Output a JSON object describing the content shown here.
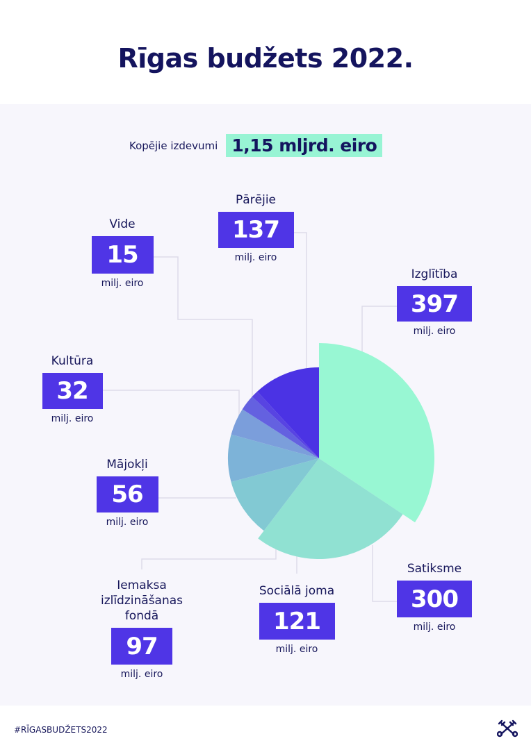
{
  "title": "Rīgas budžets 2022.",
  "total": {
    "label": "Kopējie izdevumi",
    "value": "1,15 mljrd. eiro"
  },
  "unit": "milj. eiro",
  "footer": {
    "hashtag": "#RĪGASBUDŽETS2022",
    "logo_icon": "riga-crossed-keys-icon"
  },
  "colors": {
    "title": "#14145e",
    "box": "#4f35e6",
    "highlight": "#98f4d4"
  },
  "chart_data": {
    "type": "pie",
    "title": "",
    "unit": "milj. eiro",
    "start": "top, clockwise",
    "slices": [
      {
        "name": "Izglītība",
        "label": "397",
        "value": 397,
        "color": "#98f7d3",
        "exploded": true
      },
      {
        "name": "Satiksme",
        "label": "300",
        "value": 300,
        "color": "#90e1d2",
        "exploded": true
      },
      {
        "name": "Sociālā joma",
        "label": "121",
        "value": 121,
        "color": "#82c9d3"
      },
      {
        "name": "Iemaksa izlīdzināšanas fondā",
        "label": "97",
        "value": 97,
        "color": "#7db3d8"
      },
      {
        "name": "Mājokļi",
        "label": "56",
        "value": 56,
        "color": "#7b9edb"
      },
      {
        "name": "Kultūra",
        "label": "32",
        "value": 32,
        "color": "#6461e0"
      },
      {
        "name": "Vide",
        "label": "15",
        "value": 15,
        "color": "#5844e2"
      },
      {
        "name": "Pārējie",
        "label": "137",
        "value": 137,
        "color": "#4b33e4"
      }
    ]
  }
}
